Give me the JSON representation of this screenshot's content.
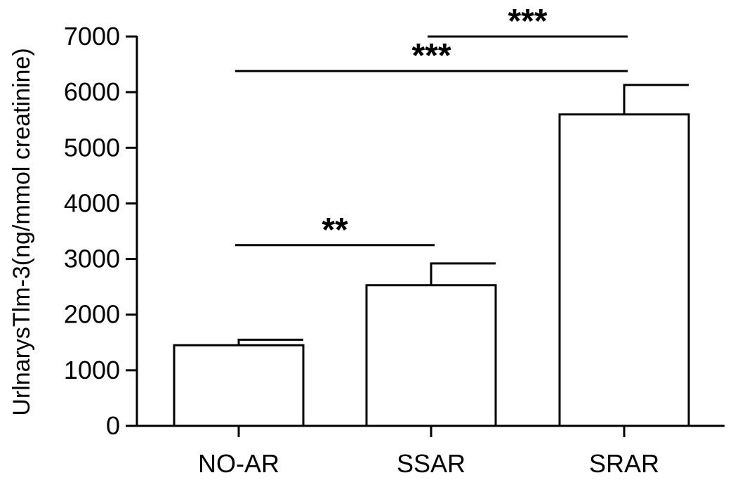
{
  "chart_data": {
    "type": "bar",
    "title": "",
    "xlabel": "",
    "ylabel": "UrlnarysTlm-3(ng/mmol creatinine)",
    "ylim": [
      0,
      7000
    ],
    "yticks": [
      0,
      1000,
      2000,
      3000,
      4000,
      5000,
      6000,
      7000
    ],
    "categories": [
      "NO-AR",
      "SSAR",
      "SRAR"
    ],
    "values": [
      1450,
      2530,
      5600
    ],
    "error_upper": [
      100,
      390,
      530
    ],
    "grid": false,
    "legend": "none",
    "bar_fill": "#ffffff",
    "bar_stroke": "#000000",
    "significance": [
      {
        "from": 0,
        "to": 1,
        "label": "**",
        "y": 3250
      },
      {
        "from": 0,
        "to": 2,
        "label": "***",
        "y": 6380
      },
      {
        "from": 1,
        "to": 2,
        "label": "***",
        "y": 7000
      }
    ]
  }
}
